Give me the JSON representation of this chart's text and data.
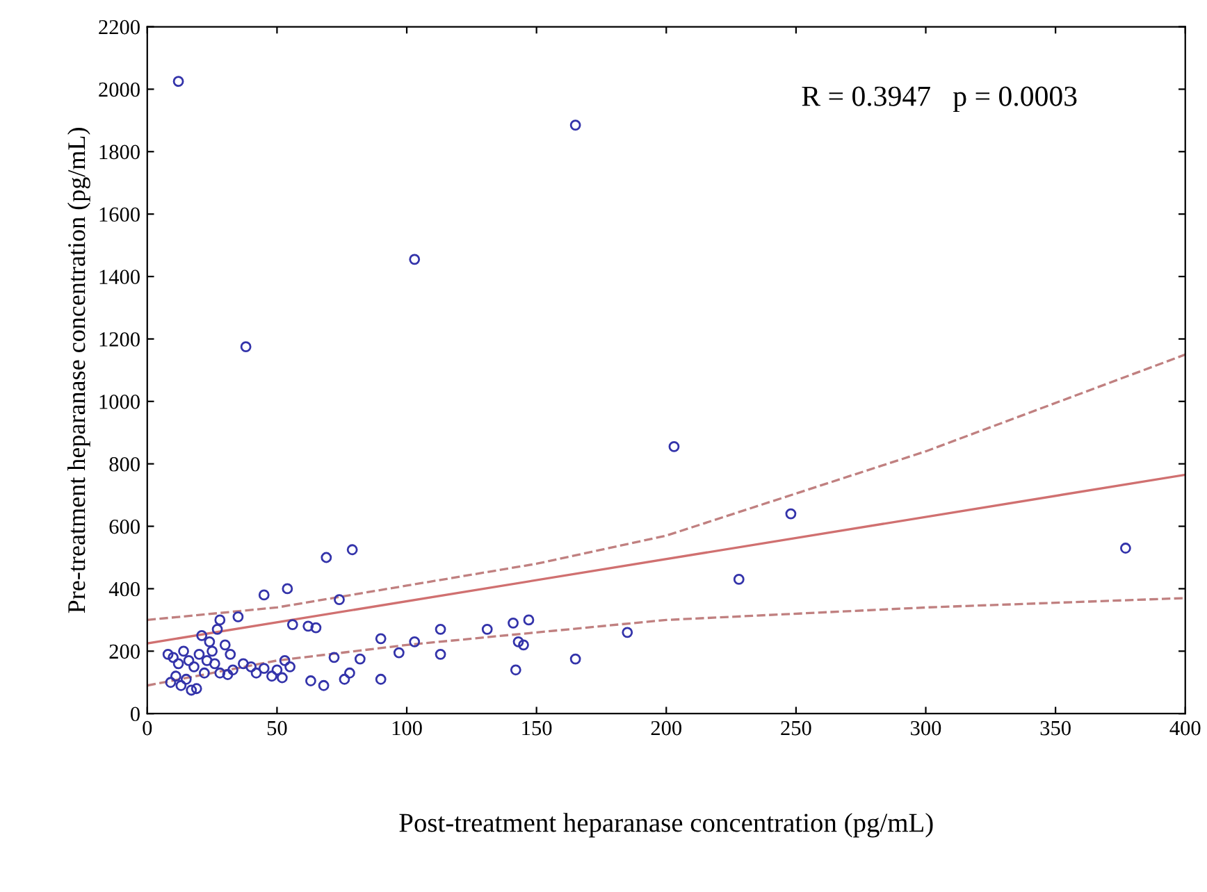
{
  "chart_data": {
    "type": "scatter",
    "xlabel": "Post-treatment heparanase concentration (pg/mL)",
    "ylabel": "Pre-treatment heparanase concentration (pg/mL)",
    "annotations": [
      "R = 0.3947   p = 0.0003"
    ],
    "xlim": [
      0,
      400
    ],
    "ylim": [
      0,
      2200
    ],
    "xticks": [
      0,
      50,
      100,
      150,
      200,
      250,
      300,
      350,
      400
    ],
    "yticks": [
      0,
      200,
      400,
      600,
      800,
      1000,
      1200,
      1400,
      1600,
      1800,
      2000,
      2200
    ],
    "grid": false,
    "legend": false,
    "series": [
      {
        "color": "#3333aa",
        "marker": "circle",
        "x": [
          12,
          38,
          103,
          165,
          203,
          248,
          228,
          377,
          185,
          165,
          147,
          145,
          143,
          141,
          142,
          131,
          113,
          113,
          103,
          97,
          90,
          90,
          82,
          79,
          78,
          76,
          74,
          72,
          69,
          68,
          65,
          62,
          63,
          56,
          54,
          53,
          50,
          48,
          45,
          45,
          42,
          40,
          37,
          35,
          33,
          32,
          30,
          28,
          27,
          26,
          24,
          23,
          22,
          21,
          20,
          19,
          18,
          16,
          15,
          14,
          13,
          12,
          11,
          10,
          9,
          8,
          17,
          25,
          28,
          31,
          52,
          55
        ],
        "values": [
          2025,
          1175,
          1455,
          1885,
          855,
          640,
          430,
          530,
          260,
          175,
          300,
          220,
          230,
          290,
          140,
          270,
          270,
          190,
          230,
          195,
          240,
          110,
          175,
          525,
          130,
          110,
          365,
          180,
          500,
          90,
          275,
          280,
          105,
          285,
          400,
          170,
          140,
          120,
          380,
          145,
          130,
          150,
          160,
          310,
          140,
          190,
          220,
          300,
          270,
          160,
          230,
          170,
          130,
          250,
          190,
          80,
          150,
          170,
          110,
          200,
          90,
          160,
          120,
          180,
          100,
          190,
          75,
          200,
          130,
          125,
          115,
          150
        ]
      },
      {
        "type": "line",
        "color": "#d07070",
        "line_style": "solid",
        "marker": "none",
        "x": [
          0,
          400
        ],
        "values": [
          225,
          765
        ]
      },
      {
        "type": "line",
        "color": "#c08080",
        "line_style": "dashed",
        "marker": "none",
        "x": [
          0,
          50,
          100,
          150,
          200,
          300,
          400
        ],
        "values": [
          300,
          340,
          410,
          480,
          570,
          840,
          1150
        ]
      },
      {
        "type": "line",
        "color": "#c08080",
        "line_style": "dashed",
        "marker": "none",
        "x": [
          0,
          50,
          100,
          150,
          200,
          300,
          400
        ],
        "values": [
          90,
          170,
          220,
          260,
          300,
          340,
          370
        ]
      }
    ]
  }
}
